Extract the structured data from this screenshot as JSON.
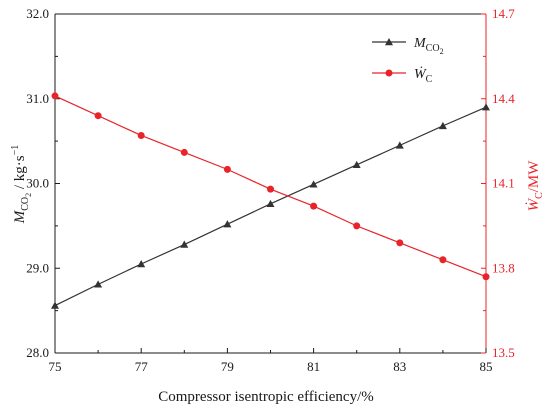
{
  "chart_data": {
    "type": "line",
    "title": "",
    "xlabel": "Compressor isentropic efficiency/%",
    "ylabel_left": {
      "main": "M",
      "sub": "CO",
      "subsub": "2",
      "unit": " / kg·s",
      "sup": "−1"
    },
    "ylabel_right": {
      "main": "Ẇ",
      "sub": "C",
      "unit": "/MW"
    },
    "xlim": [
      75,
      85
    ],
    "ylim_left": [
      28.0,
      32.0
    ],
    "ylim_right": [
      13.5,
      14.7
    ],
    "x_ticks": [
      "75",
      "77",
      "79",
      "81",
      "83",
      "85"
    ],
    "y_left_ticks": [
      "28.0",
      "29.0",
      "30.0",
      "31.0",
      "32.0"
    ],
    "y_right_ticks": [
      "13.5",
      "13.8",
      "14.1",
      "14.4",
      "14.7"
    ],
    "x": [
      75,
      76,
      77,
      78,
      79,
      80,
      81,
      82,
      83,
      84,
      85
    ],
    "series": [
      {
        "name": "M_CO2",
        "axis": "left",
        "marker": "triangle",
        "color": "#333333",
        "values": [
          28.56,
          28.81,
          29.05,
          29.28,
          29.52,
          29.76,
          29.99,
          30.22,
          30.45,
          30.68,
          30.9
        ]
      },
      {
        "name": "W_C",
        "axis": "right",
        "marker": "circle",
        "color": "#e8242a",
        "values": [
          14.41,
          14.34,
          14.27,
          14.21,
          14.15,
          14.08,
          14.02,
          13.95,
          13.89,
          13.83,
          13.77
        ]
      }
    ],
    "legend": {
      "placement": "top-right",
      "entries": [
        {
          "main": "M",
          "sub": "CO",
          "subsub": "2"
        },
        {
          "main": "Ẇ",
          "sub": "C"
        }
      ]
    },
    "grid": false,
    "colors": {
      "left_axis": "#1a1a1a",
      "right_axis": "#e8242a"
    }
  }
}
